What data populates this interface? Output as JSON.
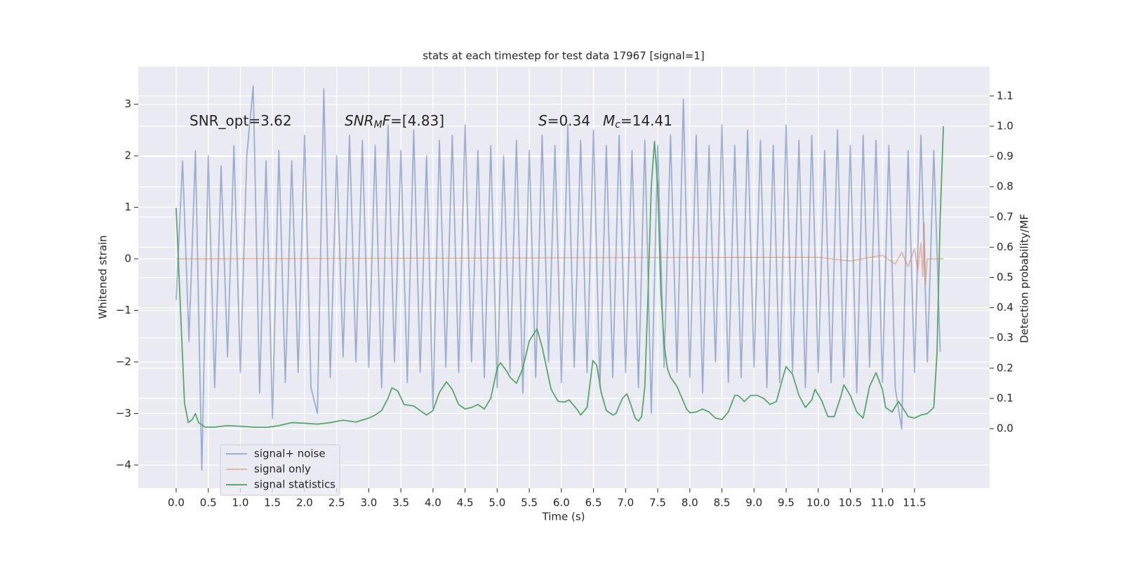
{
  "chart_data": {
    "type": "line",
    "title": "stats at each timestep for test data 17967 [signal=1]",
    "xlabel": "Time (s)",
    "ylabel": "Whitened strain",
    "y2label": "Detection probability/MF",
    "annotations": [
      {
        "parts": [
          {
            "text": "SNR_opt=3.62"
          }
        ]
      },
      {
        "parts": [
          {
            "text": "SNR",
            "italic": true
          },
          {
            "text": "M",
            "italic": true,
            "sub": true
          },
          {
            "text": "F",
            "italic": true
          },
          {
            "text": "=[4.83]"
          }
        ]
      },
      {
        "parts": [
          {
            "text": "S",
            "italic": true
          },
          {
            "text": "=0.34"
          }
        ]
      },
      {
        "parts": [
          {
            "text": "M",
            "italic": true
          },
          {
            "text": "c",
            "italic": true,
            "sub": true
          },
          {
            "text": "=14.41"
          }
        ]
      }
    ],
    "xlim": [
      -0.59,
      12.67
    ],
    "ylim": [
      -4.45,
      3.73
    ],
    "y2lim": [
      -0.197,
      1.197
    ],
    "xticks": [
      {
        "value": 0,
        "label": "0.0"
      },
      0.5,
      {
        "value": 1,
        "label": "1.0"
      },
      1.5,
      {
        "value": 2,
        "label": "2.0"
      },
      2.5,
      {
        "value": 3,
        "label": "3.0"
      },
      3.5,
      {
        "value": 4,
        "label": "4.0"
      },
      4.5,
      {
        "value": 5,
        "label": "5.0"
      },
      5.5,
      {
        "value": 6,
        "label": "6.0"
      },
      6.5,
      {
        "value": 7,
        "label": "7.0"
      },
      7.5,
      {
        "value": 8,
        "label": "8.0"
      },
      8.5,
      {
        "value": 9,
        "label": "9.0"
      },
      9.5,
      {
        "value": 10,
        "label": "10.0"
      },
      10.5,
      {
        "value": 11,
        "label": "11.0"
      },
      11.5
    ],
    "yticks": [
      {
        "value": -4,
        "label": "−4"
      },
      {
        "value": -3,
        "label": "−3"
      },
      {
        "value": -2,
        "label": "−2"
      },
      {
        "value": -1,
        "label": "−1"
      },
      0,
      1,
      2,
      3
    ],
    "y2ticks": [
      {
        "value": 0,
        "label": "0.0"
      },
      0.1,
      0.2,
      0.3,
      0.4,
      0.5,
      0.6,
      0.7,
      0.8,
      0.9,
      {
        "value": 1,
        "label": "1.0"
      },
      1.1
    ],
    "grid": true,
    "legend": "lower left",
    "series": [
      {
        "name": "signal+ noise",
        "color": "#4c72b0",
        "opacity": 0.5,
        "x": [
          0,
          0.1,
          0.2,
          0.3,
          0.4,
          0.5,
          0.6,
          0.7,
          0.8,
          0.9,
          1,
          1.1,
          1.2,
          1.3,
          1.4,
          1.5,
          1.6,
          1.7,
          1.8,
          1.9,
          2,
          2.1,
          2.2,
          2.3,
          2.4,
          2.5,
          2.6,
          2.7,
          2.8,
          2.9,
          3,
          3.1,
          3.2,
          3.3,
          3.4,
          3.5,
          3.6,
          3.7,
          3.8,
          3.9,
          4,
          4.1,
          4.2,
          4.3,
          4.4,
          4.5,
          4.6,
          4.7,
          4.8,
          4.9,
          5,
          5.1,
          5.2,
          5.3,
          5.4,
          5.5,
          5.6,
          5.7,
          5.8,
          5.9,
          6,
          6.1,
          6.2,
          6.3,
          6.4,
          6.5,
          6.6,
          6.7,
          6.8,
          6.9,
          7,
          7.1,
          7.2,
          7.3,
          7.4,
          7.5,
          7.6,
          7.7,
          7.8,
          7.9,
          8,
          8.1,
          8.2,
          8.3,
          8.4,
          8.5,
          8.6,
          8.7,
          8.8,
          8.9,
          9,
          9.1,
          9.2,
          9.3,
          9.4,
          9.5,
          9.6,
          9.7,
          9.8,
          9.9,
          10,
          10.1,
          10.2,
          10.3,
          10.4,
          10.5,
          10.6,
          10.7,
          10.8,
          10.9,
          11,
          11.1,
          11.2,
          11.3,
          11.4,
          11.5,
          11.6,
          11.7,
          11.8,
          11.9
        ],
        "values": [
          -0.8,
          1.9,
          -1.6,
          2.1,
          -4.1,
          2.0,
          -2.5,
          1.8,
          -1.9,
          2.2,
          -2.2,
          2.0,
          3.35,
          -2.6,
          1.9,
          -3.1,
          2.1,
          -2.4,
          1.9,
          -2.2,
          2.4,
          -2.5,
          -3.0,
          3.3,
          -2.3,
          2.0,
          -1.9,
          2.4,
          -2.0,
          2.3,
          -2.1,
          2.2,
          -2.5,
          2.6,
          -2.0,
          2.1,
          -2.4,
          2.5,
          -2.2,
          2.0,
          -2.9,
          2.3,
          -2.1,
          2.4,
          -2.2,
          2.6,
          -2.0,
          2.1,
          -2.3,
          2.2,
          -2.5,
          2.0,
          -2.2,
          2.3,
          -2.6,
          2.1,
          -2.3,
          2.4,
          -2.0,
          2.2,
          -2.4,
          2.6,
          -2.1,
          2.3,
          -2.2,
          2.5,
          -2.5,
          2.2,
          -2.3,
          2.4,
          -2.2,
          2.1,
          -2.5,
          2.3,
          -3.0,
          2.2,
          -2.1,
          2.4,
          -2.2,
          3.1,
          -2.3,
          2.4,
          -2.6,
          2.2,
          -2.0,
          2.6,
          -2.4,
          2.2,
          -2.3,
          2.5,
          -2.1,
          2.3,
          -2.5,
          2.2,
          -2.4,
          2.6,
          -2.2,
          2.3,
          -2.5,
          2.4,
          -2.2,
          2.1,
          -2.4,
          2.5,
          -2.3,
          2.2,
          -2.6,
          2.4,
          -2.1,
          2.3,
          -2.4,
          2.2,
          -2.5,
          -3.3,
          2.1,
          -2.2,
          2.4,
          -2.0,
          2.1,
          -1.8
        ]
      },
      {
        "name": "signal only",
        "color": "#dd8452",
        "opacity": 0.5,
        "x": [
          0,
          10.0,
          10.5,
          11.0,
          11.2,
          11.3,
          11.4,
          11.5,
          11.55,
          11.6,
          11.63,
          11.65,
          11.67,
          11.7,
          11.95
        ],
        "values": [
          0,
          0.03,
          -0.04,
          0.07,
          -0.1,
          0.13,
          -0.15,
          0.2,
          -0.22,
          0.3,
          -0.35,
          0.7,
          -0.5,
          0,
          0
        ]
      },
      {
        "name": "signal statistics",
        "color": "#55a868",
        "opacity": 1,
        "axis": "y2",
        "x": [
          0,
          0.13,
          0.19,
          0.25,
          0.3,
          0.35,
          0.45,
          0.6,
          0.8,
          1.0,
          1.2,
          1.4,
          1.6,
          1.8,
          2.0,
          2.2,
          2.4,
          2.6,
          2.8,
          3.0,
          3.1,
          3.2,
          3.3,
          3.36,
          3.45,
          3.55,
          3.7,
          3.8,
          3.9,
          4.0,
          4.1,
          4.21,
          4.3,
          4.4,
          4.5,
          4.6,
          4.7,
          4.8,
          4.9,
          5.0,
          5.05,
          5.15,
          5.2,
          5.3,
          5.4,
          5.5,
          5.62,
          5.7,
          5.84,
          5.95,
          6.05,
          6.12,
          6.24,
          6.3,
          6.4,
          6.49,
          6.55,
          6.62,
          6.7,
          6.8,
          6.85,
          6.95,
          7.02,
          7.08,
          7.15,
          7.2,
          7.25,
          7.3,
          7.35,
          7.4,
          7.45,
          7.5,
          7.55,
          7.6,
          7.65,
          7.7,
          7.8,
          7.9,
          7.95,
          8.0,
          8.1,
          8.2,
          8.3,
          8.4,
          8.5,
          8.6,
          8.7,
          8.75,
          8.85,
          8.95,
          9.05,
          9.15,
          9.25,
          9.35,
          9.45,
          9.5,
          9.6,
          9.7,
          9.8,
          9.9,
          9.95,
          10.05,
          10.15,
          10.25,
          10.35,
          10.4,
          10.5,
          10.6,
          10.7,
          10.8,
          10.9,
          11.0,
          11.05,
          11.15,
          11.25,
          11.3,
          11.4,
          11.5,
          11.6,
          11.7,
          11.8,
          11.85,
          11.9,
          11.95
        ],
        "values": [
          0.73,
          0.085,
          0.02,
          0.03,
          0.05,
          0.02,
          0.005,
          0.005,
          0.01,
          0.008,
          0.005,
          0.004,
          0.01,
          0.02,
          0.018,
          0.015,
          0.02,
          0.028,
          0.022,
          0.035,
          0.045,
          0.06,
          0.1,
          0.135,
          0.125,
          0.08,
          0.075,
          0.06,
          0.045,
          0.06,
          0.12,
          0.155,
          0.13,
          0.08,
          0.065,
          0.07,
          0.08,
          0.065,
          0.1,
          0.2,
          0.218,
          0.19,
          0.17,
          0.15,
          0.2,
          0.29,
          0.33,
          0.27,
          0.13,
          0.09,
          0.088,
          0.095,
          0.065,
          0.045,
          0.07,
          0.225,
          0.21,
          0.12,
          0.06,
          0.045,
          0.05,
          0.1,
          0.115,
          0.08,
          0.035,
          0.025,
          0.04,
          0.14,
          0.45,
          0.8,
          0.95,
          0.8,
          0.45,
          0.28,
          0.2,
          0.17,
          0.14,
          0.09,
          0.065,
          0.053,
          0.055,
          0.065,
          0.055,
          0.035,
          0.03,
          0.055,
          0.11,
          0.11,
          0.09,
          0.11,
          0.11,
          0.1,
          0.08,
          0.09,
          0.17,
          0.205,
          0.18,
          0.11,
          0.07,
          0.095,
          0.13,
          0.095,
          0.04,
          0.04,
          0.105,
          0.145,
          0.11,
          0.055,
          0.035,
          0.14,
          0.185,
          0.13,
          0.07,
          0.055,
          0.09,
          0.075,
          0.04,
          0.035,
          0.045,
          0.05,
          0.07,
          0.25,
          0.7,
          1.0
        ]
      }
    ]
  }
}
